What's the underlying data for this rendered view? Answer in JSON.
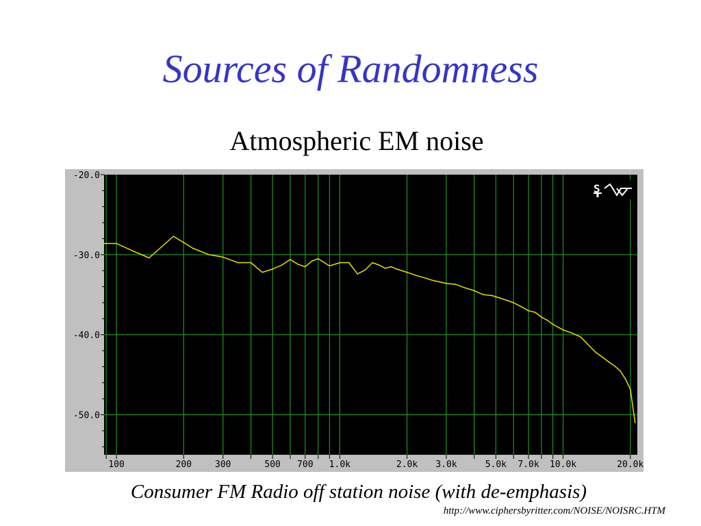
{
  "slide": {
    "title": "Sources of Randomness",
    "subtitle": "Atmospheric EM noise",
    "caption": "Consumer FM Radio off station noise (with de-emphasis)",
    "source_url": "http://www.ciphersbyritter.com/NOISE/NOISRC.HTM"
  },
  "colors": {
    "title": "#3535c8",
    "plot_background": "#000000",
    "frame": "#c0c0c0",
    "grid": "#1f8a1f",
    "trace": "#e8e000"
  },
  "icons": [
    "spectrum-sine-icon"
  ],
  "chart_data": {
    "type": "line",
    "xscale": "log",
    "xlim": [
      88,
      21500
    ],
    "ylim": [
      -55,
      -20
    ],
    "y_ticks": [
      {
        "value": -20,
        "label": "-20.0"
      },
      {
        "value": -30,
        "label": "-30.0"
      },
      {
        "value": -40,
        "label": "-40.0"
      },
      {
        "value": -50,
        "label": "-50.0"
      }
    ],
    "x_ticks": [
      {
        "value": 100,
        "label": "100"
      },
      {
        "value": 200,
        "label": "200"
      },
      {
        "value": 300,
        "label": "300"
      },
      {
        "value": 500,
        "label": "500"
      },
      {
        "value": 700,
        "label": "700"
      },
      {
        "value": 1000,
        "label": "1.0k"
      },
      {
        "value": 2000,
        "label": "2.0k"
      },
      {
        "value": 3000,
        "label": "3.0k"
      },
      {
        "value": 5000,
        "label": "5.0k"
      },
      {
        "value": 7000,
        "label": "7.0k"
      },
      {
        "value": 10000,
        "label": "10.0k"
      },
      {
        "value": 20000,
        "label": "20.0k"
      }
    ],
    "x_gridlines": [
      90,
      100,
      200,
      300,
      400,
      500,
      600,
      700,
      800,
      900,
      1000,
      2000,
      3000,
      4000,
      5000,
      6000,
      7000,
      8000,
      9000,
      10000,
      20000
    ],
    "grid": true,
    "series": [
      {
        "x": [
          88,
          100,
          120,
          140,
          180,
          220,
          260,
          300,
          350,
          400,
          450,
          500,
          550,
          600,
          650,
          700,
          750,
          800,
          900,
          1000,
          1100,
          1200,
          1300,
          1400,
          1500,
          1600,
          1700,
          1800,
          2000,
          2200,
          2400,
          2600,
          2800,
          3000,
          3300,
          3600,
          4000,
          4400,
          4800,
          5200,
          5600,
          6000,
          6500,
          7000,
          7500,
          8000,
          8500,
          9000,
          10000,
          11000,
          12000,
          13000,
          14000,
          15000,
          16000,
          17000,
          18000,
          19000,
          20000,
          21000
        ],
        "y": [
          -28.6,
          -28.6,
          -29.6,
          -30.4,
          -27.7,
          -29.2,
          -30.0,
          -30.3,
          -31.0,
          -31.0,
          -32.2,
          -31.8,
          -31.3,
          -30.6,
          -31.2,
          -31.5,
          -30.8,
          -30.5,
          -31.4,
          -31.0,
          -31.0,
          -32.4,
          -31.9,
          -31.0,
          -31.3,
          -31.7,
          -31.5,
          -31.8,
          -32.2,
          -32.6,
          -32.9,
          -33.2,
          -33.4,
          -33.6,
          -33.7,
          -34.1,
          -34.5,
          -35.0,
          -35.1,
          -35.4,
          -35.7,
          -36.0,
          -36.5,
          -37.0,
          -37.2,
          -37.8,
          -38.2,
          -38.7,
          -39.4,
          -39.8,
          -40.3,
          -41.3,
          -42.2,
          -42.8,
          -43.4,
          -43.9,
          -44.5,
          -45.5,
          -46.8,
          -51.0
        ]
      }
    ]
  }
}
